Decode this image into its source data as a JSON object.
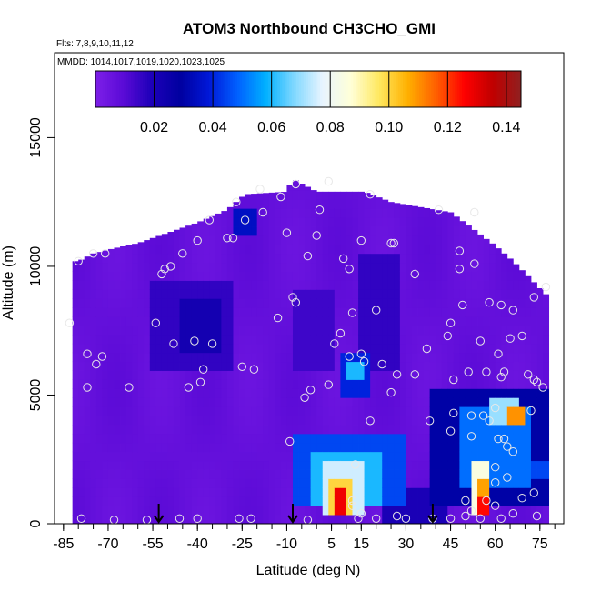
{
  "chart_data": {
    "type": "heatmap",
    "title": "ATOM3 Northbound CH3CHO_GMI",
    "annotations": {
      "flights": "Flts: 7,8,9,10,11,12",
      "dates": "MMDD: 1014,1017,1019,1020,1023,1025"
    },
    "xlabel": "Latitude (deg N)",
    "ylabel": "Altitude (m)",
    "xlim": [
      -88,
      83
    ],
    "ylim": [
      0,
      18300
    ],
    "x_ticks": [
      -85,
      -70,
      -55,
      -40,
      -25,
      -10,
      5,
      15,
      30,
      45,
      60,
      75
    ],
    "y_ticks": [
      0,
      5000,
      10000,
      15000
    ],
    "colorbar": {
      "range": [
        0,
        0.145
      ],
      "ticks": [
        0.02,
        0.04,
        0.06,
        0.08,
        0.1,
        0.12,
        0.14
      ],
      "tick_labels": [
        "0.02",
        "0.04",
        "0.06",
        "0.08",
        "0.10",
        "0.12",
        "0.14"
      ],
      "colors": [
        "#7d1fe8",
        "#5a0ad6",
        "#1c00b8",
        "#0000a0",
        "#0018d8",
        "#0060ff",
        "#00b0ff",
        "#80d8ff",
        "#e8f4ff",
        "#ffffd8",
        "#ffe860",
        "#ffb000",
        "#ff6000",
        "#ff0000",
        "#c00000",
        "#902020"
      ]
    },
    "arrows_lat": [
      -53,
      -8,
      39
    ],
    "grid": false,
    "legend": "none",
    "field": {
      "background": 0.007,
      "altitude_profile": [
        {
          "lat": -80,
          "top": 10200
        },
        {
          "lat": -75,
          "top": 10500
        },
        {
          "lat": -68,
          "top": 10700
        },
        {
          "lat": -60,
          "top": 10900
        },
        {
          "lat": -50,
          "top": 11300
        },
        {
          "lat": -40,
          "top": 11700
        },
        {
          "lat": -30,
          "top": 12200
        },
        {
          "lat": -24,
          "top": 12800
        },
        {
          "lat": -10,
          "top": 12900
        },
        {
          "lat": -8,
          "top": 13400
        },
        {
          "lat": 0,
          "top": 12900
        },
        {
          "lat": 10,
          "top": 12900
        },
        {
          "lat": 16,
          "top": 12900
        },
        {
          "lat": 25,
          "top": 12500
        },
        {
          "lat": 35,
          "top": 12300
        },
        {
          "lat": 45,
          "top": 12100
        },
        {
          "lat": 52,
          "top": 11500
        },
        {
          "lat": 60,
          "top": 10800
        },
        {
          "lat": 66,
          "top": 10200
        },
        {
          "lat": 72,
          "top": 9500
        },
        {
          "lat": 78,
          "top": 8800
        }
      ],
      "lat_extent": [
        -82,
        78
      ],
      "features": [
        {
          "lat_min": -55,
          "lat_max": -28,
          "alt_min": 5800,
          "alt_max": 9500,
          "value": 0.016
        },
        {
          "lat_min": -45,
          "lat_max": -33,
          "alt_min": 6500,
          "alt_max": 8600,
          "value": 0.022
        },
        {
          "lat_min": -28,
          "lat_max": -20,
          "alt_min": 11200,
          "alt_max": 12100,
          "value": 0.035
        },
        {
          "lat_min": -8,
          "lat_max": 5,
          "alt_min": 6000,
          "alt_max": 9000,
          "value": 0.014
        },
        {
          "lat_min": 9,
          "lat_max": 18,
          "alt_min": 5000,
          "alt_max": 6600,
          "value": 0.04
        },
        {
          "lat_min": 10,
          "lat_max": 16,
          "alt_min": 5600,
          "alt_max": 6200,
          "value": 0.06
        },
        {
          "lat_min": 15,
          "lat_max": 28,
          "alt_min": 6000,
          "alt_max": 10500,
          "value": 0.016
        },
        {
          "lat_min": 22,
          "lat_max": 43,
          "alt_min": 0,
          "alt_max": 1500,
          "value": 0.02
        },
        {
          "lat_min": -7,
          "lat_max": 30,
          "alt_min": 800,
          "alt_max": 3400,
          "value": 0.045
        },
        {
          "lat_min": -2,
          "lat_max": 22,
          "alt_min": 700,
          "alt_max": 2800,
          "value": 0.06
        },
        {
          "lat_min": 3,
          "lat_max": 15,
          "alt_min": 200,
          "alt_max": 2300,
          "value": 0.075
        },
        {
          "lat_min": 5,
          "lat_max": 11,
          "alt_min": 200,
          "alt_max": 1800,
          "value": 0.1
        },
        {
          "lat_min": 6,
          "lat_max": 10,
          "alt_min": 300,
          "alt_max": 1300,
          "value": 0.128
        },
        {
          "lat_min": 39,
          "lat_max": 78,
          "alt_min": 800,
          "alt_max": 5200,
          "value": 0.03
        },
        {
          "lat_min": 48,
          "lat_max": 72,
          "alt_min": 1500,
          "alt_max": 4500,
          "value": 0.05
        },
        {
          "lat_min": 59,
          "lat_max": 68,
          "alt_min": 3800,
          "alt_max": 4800,
          "value": 0.07
        },
        {
          "lat_min": 64,
          "lat_max": 69,
          "alt_min": 4000,
          "alt_max": 4600,
          "value": 0.11
        },
        {
          "lat_min": 52,
          "lat_max": 58,
          "alt_min": 200,
          "alt_max": 2600,
          "value": 0.085
        },
        {
          "lat_min": 54,
          "lat_max": 58,
          "alt_min": 300,
          "alt_max": 1900,
          "value": 0.108
        },
        {
          "lat_min": 55,
          "lat_max": 57.5,
          "alt_min": 400,
          "alt_max": 1100,
          "value": 0.125
        },
        {
          "lat_min": 58,
          "lat_max": 78,
          "alt_min": 1600,
          "alt_max": 2400,
          "value": 0.045
        }
      ]
    },
    "observations": [
      [
        -80,
        10200
      ],
      [
        -83,
        7800
      ],
      [
        -77,
        6600
      ],
      [
        -72,
        6500
      ],
      [
        -74,
        6200
      ],
      [
        -77,
        5300
      ],
      [
        -63,
        5300
      ],
      [
        -75,
        10500
      ],
      [
        -71,
        10500
      ],
      [
        -79,
        200
      ],
      [
        -68,
        150
      ],
      [
        -57,
        150
      ],
      [
        -46,
        200
      ],
      [
        -40,
        200
      ],
      [
        -26,
        200
      ],
      [
        -22,
        200
      ],
      [
        -3,
        150
      ],
      [
        12,
        700
      ],
      [
        15,
        400
      ],
      [
        20,
        200
      ],
      [
        30,
        200
      ],
      [
        45,
        200
      ],
      [
        50,
        300
      ],
      [
        -54,
        7800
      ],
      [
        -48,
        7000
      ],
      [
        -41,
        7100
      ],
      [
        -35,
        7000
      ],
      [
        -38,
        6000
      ],
      [
        -39,
        5500
      ],
      [
        -43,
        5300
      ],
      [
        -25,
        6100
      ],
      [
        -21,
        6000
      ],
      [
        -13,
        8000
      ],
      [
        -8,
        8800
      ],
      [
        -7,
        8600
      ],
      [
        -2,
        5200
      ],
      [
        4,
        5400
      ],
      [
        6,
        7000
      ],
      [
        8,
        7400
      ],
      [
        11,
        6500
      ],
      [
        16,
        6300
      ],
      [
        15,
        6600
      ],
      [
        22,
        6200
      ],
      [
        25,
        5100
      ],
      [
        20,
        8300
      ],
      [
        27,
        5800
      ],
      [
        33,
        5800
      ],
      [
        37,
        6800
      ],
      [
        44,
        7300
      ],
      [
        45,
        7800
      ],
      [
        46,
        5600
      ],
      [
        51,
        5900
      ],
      [
        49,
        8500
      ],
      [
        55,
        7100
      ],
      [
        57,
        5900
      ],
      [
        58,
        8600
      ],
      [
        62,
        8500
      ],
      [
        61,
        6600
      ],
      [
        62,
        5700
      ],
      [
        63,
        5900
      ],
      [
        65,
        7200
      ],
      [
        69,
        7300
      ],
      [
        66,
        8300
      ],
      [
        71,
        5800
      ],
      [
        73,
        5600
      ],
      [
        76,
        5300
      ],
      [
        73,
        8800
      ],
      [
        77,
        9200
      ],
      [
        -52,
        9700
      ],
      [
        -51,
        9900
      ],
      [
        -49,
        10000
      ],
      [
        -40,
        11000
      ],
      [
        -36,
        11800
      ],
      [
        -30,
        11100
      ],
      [
        -28,
        11100
      ],
      [
        -24,
        11800
      ],
      [
        -18,
        12100
      ],
      [
        -12,
        12700
      ],
      [
        -7,
        13200
      ],
      [
        -3,
        10400
      ],
      [
        1,
        12200
      ],
      [
        9,
        10300
      ],
      [
        11,
        9900
      ],
      [
        15,
        11000
      ],
      [
        18,
        12800
      ],
      [
        25,
        10900
      ],
      [
        26,
        10900
      ],
      [
        33,
        9700
      ],
      [
        41,
        12200
      ],
      [
        48,
        9900
      ],
      [
        48,
        10600
      ],
      [
        53,
        10100
      ],
      [
        53,
        12100
      ],
      [
        -45,
        10500
      ],
      [
        0,
        11200
      ],
      [
        38,
        4000
      ],
      [
        45,
        3600
      ],
      [
        46,
        4300
      ],
      [
        52,
        4200
      ],
      [
        56,
        4200
      ],
      [
        58,
        4000
      ],
      [
        60,
        4500
      ],
      [
        61,
        3300
      ],
      [
        63,
        3300
      ],
      [
        64,
        3000
      ],
      [
        66,
        2800
      ],
      [
        72,
        4400
      ],
      [
        74,
        5500
      ],
      [
        52,
        3400
      ],
      [
        60,
        2200
      ],
      [
        64,
        1800
      ],
      [
        69,
        1000
      ],
      [
        73,
        1200
      ],
      [
        74,
        300
      ],
      [
        55,
        200
      ],
      [
        52,
        500
      ],
      [
        50,
        900
      ],
      [
        57,
        900
      ],
      [
        60,
        700
      ],
      [
        62,
        200
      ],
      [
        66,
        400
      ],
      [
        60,
        1600
      ],
      [
        13,
        2300
      ],
      [
        12,
        900
      ],
      [
        14,
        200
      ],
      [
        18,
        4000
      ],
      [
        -9,
        3200
      ],
      [
        27,
        300
      ],
      [
        39,
        200
      ],
      [
        -4,
        4900
      ],
      [
        -27,
        12500
      ],
      [
        -19,
        13000
      ],
      [
        -10,
        11300
      ],
      [
        4,
        13300
      ],
      [
        12,
        8200
      ]
    ]
  }
}
